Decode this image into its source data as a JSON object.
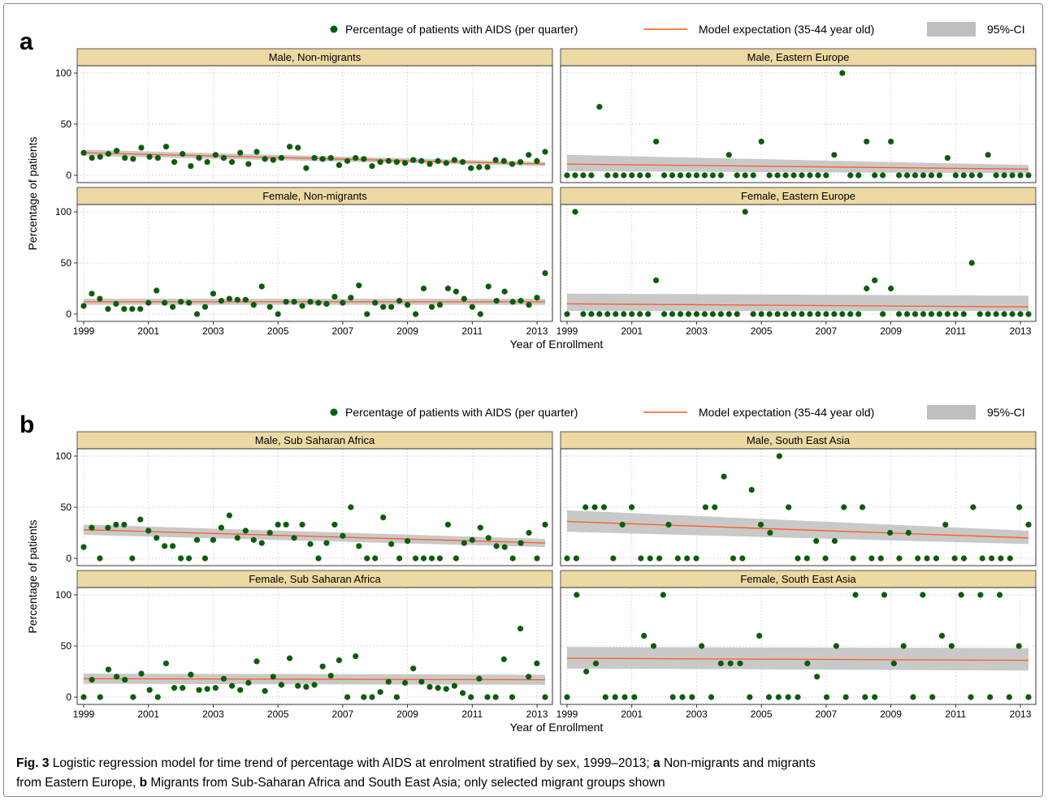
{
  "figure": {
    "caption": {
      "label": "Fig. 3",
      "line1_parts": [
        {
          "t": " Logistic regression model for time trend of percentage with AIDS at enrolment stratified by sex, 1999–2013; ",
          "b": false
        },
        {
          "t": "a",
          "b": true
        },
        {
          "t": " Non-migrants and migrants",
          "b": false
        }
      ],
      "line2_parts": [
        {
          "t": "from Eastern Europe, ",
          "b": false
        },
        {
          "t": "b",
          "b": true
        },
        {
          "t": " Migrants from Sub-Saharan Africa and South East Asia; only selected migrant groups shown",
          "b": false
        }
      ]
    },
    "colors": {
      "points": "#0d5c0d",
      "model_line": "#ff5a1f",
      "ci_band": "#bfbfbf",
      "strip_fill": "#ecd9a3"
    }
  },
  "chart_data": [
    {
      "type": "scatter",
      "panel_label": "a",
      "legend": {
        "points": "Percentage of patients with AIDS (per quarter)",
        "line": "Model expectation (35-44 year old)",
        "band": "95%-CI"
      },
      "xlabel": "Year of Enrollment",
      "ylabel": "Percentage of patients",
      "xlim": [
        1999,
        2013.25
      ],
      "ylim": [
        0,
        100
      ],
      "x_ticks": [
        1999,
        2001,
        2003,
        2005,
        2007,
        2009,
        2011,
        2013
      ],
      "y_ticks": [
        0,
        50,
        100
      ],
      "facets": [
        {
          "title": "Male, Non-migrants",
          "model": [
            22,
            11
          ],
          "ci_low": [
            19,
            9
          ],
          "ci_high": [
            25,
            13
          ],
          "y": [
            22,
            17,
            18,
            21,
            24,
            17,
            16,
            27,
            18,
            17,
            28,
            13,
            21,
            9,
            17,
            13,
            20,
            17,
            13,
            22,
            11,
            23,
            16,
            15,
            17,
            28,
            27,
            7,
            17,
            16,
            17,
            10,
            14,
            17,
            16,
            9,
            13,
            14,
            13,
            12,
            15,
            14,
            11,
            14,
            12,
            15,
            13,
            7,
            8,
            8,
            15,
            14,
            11,
            13,
            20,
            14,
            23
          ]
        },
        {
          "title": "Male, Eastern Europe",
          "model": [
            11,
            6
          ],
          "ci_low": [
            4,
            2
          ],
          "ci_high": [
            20,
            10
          ],
          "y": [
            0,
            0,
            0,
            0,
            67,
            0,
            0,
            0,
            0,
            0,
            0,
            33,
            0,
            0,
            0,
            0,
            0,
            0,
            0,
            0,
            20,
            0,
            0,
            0,
            33,
            0,
            0,
            0,
            0,
            0,
            0,
            0,
            0,
            20,
            100,
            0,
            0,
            33,
            0,
            0,
            33,
            0,
            0,
            0,
            0,
            0,
            0,
            17,
            0,
            0,
            0,
            0,
            20,
            0,
            0,
            0,
            0,
            0
          ]
        },
        {
          "title": "Female, Non-migrants",
          "model": [
            12,
            12
          ],
          "ci_low": [
            9,
            9
          ],
          "ci_high": [
            15,
            15
          ],
          "y": [
            8,
            20,
            15,
            5,
            10,
            5,
            5,
            5,
            11,
            23,
            11,
            7,
            12,
            11,
            0,
            7,
            20,
            13,
            15,
            14,
            14,
            9,
            27,
            7,
            0,
            12,
            12,
            8,
            12,
            11,
            10,
            17,
            11,
            16,
            28,
            0,
            11,
            7,
            7,
            13,
            9,
            0,
            25,
            7,
            9,
            25,
            22,
            15,
            7,
            0,
            27,
            13,
            22,
            12,
            13,
            9,
            16,
            40
          ]
        },
        {
          "title": "Female, Eastern Europe",
          "model": [
            10,
            7
          ],
          "ci_low": [
            3,
            3
          ],
          "ci_high": [
            20,
            18
          ],
          "y": [
            0,
            100,
            0,
            0,
            0,
            0,
            0,
            0,
            0,
            0,
            0,
            33,
            0,
            0,
            0,
            0,
            0,
            0,
            0,
            0,
            0,
            0,
            100,
            0,
            0,
            0,
            0,
            0,
            0,
            0,
            0,
            0,
            0,
            0,
            0,
            0,
            0,
            25,
            33,
            0,
            25,
            0,
            0,
            0,
            0,
            0,
            0,
            0,
            0,
            0,
            50,
            0,
            0,
            0,
            0,
            0,
            0,
            0
          ]
        }
      ]
    },
    {
      "type": "scatter",
      "panel_label": "b",
      "legend": {
        "points": "Percentage of patients with AIDS (per quarter)",
        "line": "Model expectation (35-44 year old)",
        "band": "95%-CI"
      },
      "xlabel": "Year of Enrollment",
      "ylabel": "Percentage of patients",
      "xlim": [
        1999,
        2013.25
      ],
      "ylim": [
        0,
        100
      ],
      "x_ticks": [
        1999,
        2001,
        2003,
        2005,
        2007,
        2009,
        2011,
        2013
      ],
      "y_ticks": [
        0,
        50,
        100
      ],
      "facets": [
        {
          "title": "Male, Sub Saharan Africa",
          "model": [
            28,
            15
          ],
          "ci_low": [
            23,
            11
          ],
          "ci_high": [
            33,
            19
          ],
          "y": [
            11,
            30,
            0,
            30,
            33,
            33,
            0,
            38,
            27,
            20,
            12,
            12,
            0,
            0,
            18,
            0,
            18,
            30,
            42,
            20,
            27,
            18,
            15,
            25,
            33,
            33,
            20,
            33,
            14,
            0,
            15,
            33,
            22,
            50,
            12,
            0,
            0,
            40,
            14,
            0,
            17,
            0,
            0,
            0,
            0,
            33,
            0,
            15,
            18,
            30,
            20,
            12,
            11,
            0,
            15,
            25,
            0,
            33
          ]
        },
        {
          "title": "Male, South East Asia",
          "model": [
            36,
            20
          ],
          "ci_low": [
            26,
            14
          ],
          "ci_high": [
            47,
            27
          ],
          "y": [
            0,
            0,
            50,
            50,
            50,
            0,
            33,
            50,
            0,
            0,
            0,
            33,
            0,
            0,
            0,
            50,
            50,
            80,
            0,
            0,
            67,
            33,
            25,
            100,
            50,
            0,
            0,
            17,
            0,
            17,
            50,
            0,
            50,
            0,
            0,
            25,
            0,
            25,
            0,
            0,
            0,
            33,
            0,
            0,
            50,
            0,
            0,
            0,
            0,
            50,
            33
          ]
        },
        {
          "title": "Female, Sub Saharan Africa",
          "model": [
            18,
            17
          ],
          "ci_low": [
            13,
            12
          ],
          "ci_high": [
            23,
            22
          ],
          "y": [
            0,
            17,
            0,
            27,
            20,
            17,
            0,
            23,
            7,
            0,
            33,
            9,
            9,
            22,
            7,
            8,
            9,
            18,
            11,
            7,
            14,
            35,
            6,
            20,
            12,
            38,
            11,
            10,
            12,
            30,
            21,
            36,
            0,
            40,
            0,
            0,
            5,
            15,
            0,
            14,
            28,
            15,
            10,
            9,
            8,
            11,
            4,
            0,
            18,
            0,
            0,
            37,
            0,
            67,
            20,
            33,
            0
          ]
        },
        {
          "title": "Female, South East Asia",
          "model": [
            38,
            36
          ],
          "ci_low": [
            28,
            26
          ],
          "ci_high": [
            49,
            48
          ],
          "y": [
            0,
            100,
            25,
            33,
            0,
            0,
            0,
            0,
            60,
            50,
            100,
            0,
            0,
            0,
            50,
            0,
            33,
            33,
            33,
            0,
            60,
            0,
            0,
            0,
            0,
            33,
            20,
            0,
            50,
            0,
            100,
            0,
            0,
            100,
            33,
            50,
            0,
            100,
            0,
            60,
            50,
            100,
            0,
            100,
            0,
            100,
            0,
            50,
            0
          ]
        }
      ]
    }
  ]
}
